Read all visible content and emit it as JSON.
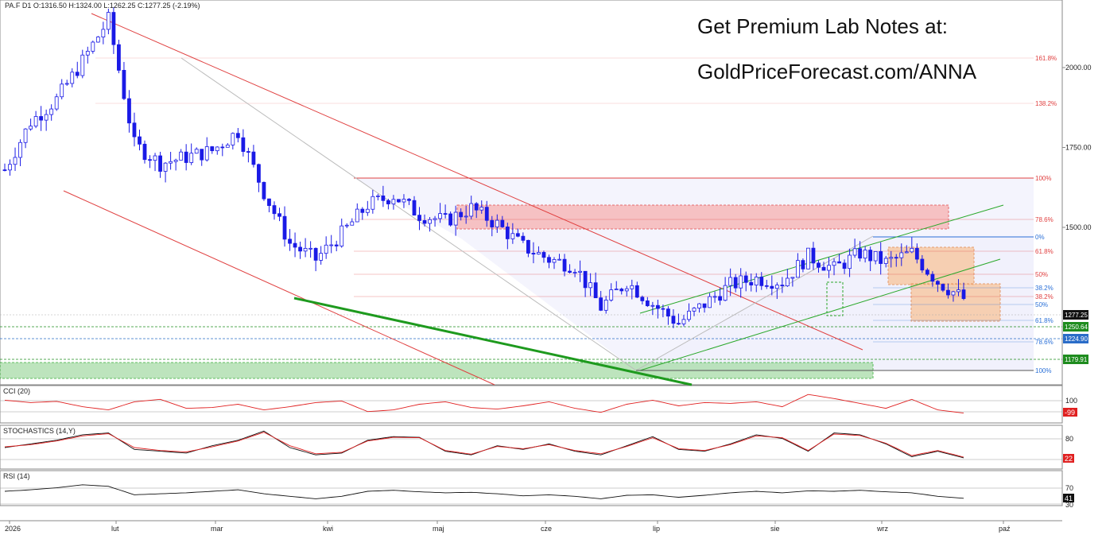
{
  "header": {
    "ohlc": "PA.F  D1  O:1316.50  H:1324.00  L:1262.25  C:1277.25  (-2.19%)",
    "promo_line1": "Get Premium Lab Notes at:",
    "promo_line2": "GoldPriceForecast.com/ANNA"
  },
  "colors": {
    "candle_blue": "#1a1ae6",
    "fib_red": "#e04040",
    "fib_blue": "#2a70d8",
    "channel_green": "#2aa82a",
    "resistance_zone": "#f7b0b0",
    "support_zone": "#a8dca8",
    "orange_zone": "#f8c49a",
    "price_label_green": "#1e8c1e",
    "price_label_blue": "#2a6cc8",
    "cci_line": "#e02020"
  },
  "chart_data": [
    {
      "type": "line",
      "name": "main-price-panel",
      "series": [
        {
          "name": "",
          "x": [
            "2026-01-02",
            "2026-01-09",
            "2026-01-16",
            "2026-01-23",
            "2026-01-30",
            "2026-02-06",
            "2026-02-13",
            "2026-02-20",
            "2026-02-27",
            "2026-03-06",
            "2026-03-13",
            "2026-03-20",
            "2026-03-27",
            "2026-04-03",
            "2026-04-10",
            "2026-04-17",
            "2026-04-24",
            "2026-05-01",
            "2026-05-08",
            "2026-05-15",
            "2026-05-22",
            "2026-05-29",
            "2026-06-05",
            "2026-06-12",
            "2026-06-19",
            "2026-06-26",
            "2026-07-03",
            "2026-07-10",
            "2026-07-17",
            "2026-07-24",
            "2026-07-31",
            "2026-08-07",
            "2026-08-14",
            "2026-08-21",
            "2026-08-28",
            "2026-09-04",
            "2026-09-11",
            "2026-09-18"
          ],
          "values": [
            1680,
            1830,
            1900,
            2020,
            2150,
            1760,
            1700,
            1720,
            1740,
            1800,
            1610,
            1450,
            1400,
            1480,
            1570,
            1600,
            1540,
            1520,
            1560,
            1510,
            1440,
            1400,
            1380,
            1250,
            1330,
            1260,
            1200,
            1260,
            1320,
            1340,
            1330,
            1410,
            1370,
            1420,
            1390,
            1420,
            1330,
            1277
          ]
        }
      ],
      "ylim": [
        1100,
        2250
      ],
      "yticks": [
        "2000.00",
        "1750.00",
        "1500.00"
      ],
      "xticks": [
        "2026",
        "lut",
        "mar",
        "kwi",
        "maj",
        "cze",
        "lip",
        "sie",
        "wrz",
        "paź"
      ],
      "fib_upper_labels": [
        "161.8%",
        "138.2%",
        "100%",
        "78.6%",
        "61.8%",
        "50%",
        "38.2%"
      ],
      "fib_lower_labels": [
        "0%",
        "38.2%",
        "50%",
        "61.8%",
        "78.6%",
        "100%"
      ],
      "price_labels": [
        {
          "value": "1277.25",
          "kind": "current"
        },
        {
          "value": "1250.64",
          "kind": "green"
        },
        {
          "value": "1224.90",
          "kind": "blue"
        },
        {
          "value": "1179.91",
          "kind": "green"
        }
      ]
    },
    {
      "type": "line",
      "name": "cci-panel",
      "title": "CCI (20)",
      "ytick": "100",
      "last_value": "-99",
      "values": [
        60,
        30,
        45,
        -20,
        -60,
        40,
        70,
        -40,
        -30,
        10,
        -60,
        -20,
        30,
        50,
        -80,
        -60,
        10,
        40,
        -30,
        -50,
        -10,
        40,
        -40,
        -90,
        10,
        60,
        -10,
        30,
        20,
        40,
        -20,
        130,
        80,
        20,
        -40,
        70,
        -60,
        -99
      ]
    },
    {
      "type": "line",
      "name": "stochastics-panel",
      "title": "STOCHASTICS (14,Y)",
      "ytick": "80",
      "last_value": "22",
      "series": [
        {
          "name": "%K",
          "values": [
            50,
            60,
            70,
            85,
            90,
            45,
            40,
            35,
            55,
            70,
            95,
            50,
            30,
            35,
            70,
            80,
            78,
            40,
            30,
            55,
            45,
            60,
            40,
            30,
            55,
            80,
            45,
            40,
            60,
            85,
            75,
            40,
            90,
            85,
            60,
            25,
            40,
            22
          ]
        },
        {
          "name": "%D",
          "values": [
            52,
            58,
            68,
            82,
            88,
            50,
            42,
            38,
            52,
            68,
            92,
            55,
            33,
            37,
            68,
            78,
            77,
            42,
            32,
            53,
            47,
            58,
            42,
            33,
            53,
            77,
            47,
            42,
            58,
            82,
            77,
            42,
            87,
            83,
            62,
            28,
            42,
            24
          ]
        }
      ]
    },
    {
      "type": "line",
      "name": "rsi-panel",
      "title": "RSI (14)",
      "ytick": "70",
      "ytick2": "30",
      "last_value": "41",
      "values": [
        55,
        58,
        62,
        68,
        65,
        48,
        50,
        52,
        55,
        58,
        50,
        45,
        40,
        45,
        55,
        57,
        54,
        52,
        53,
        50,
        46,
        48,
        45,
        40,
        47,
        48,
        43,
        47,
        52,
        55,
        52,
        56,
        55,
        57,
        54,
        52,
        45,
        41
      ]
    }
  ]
}
